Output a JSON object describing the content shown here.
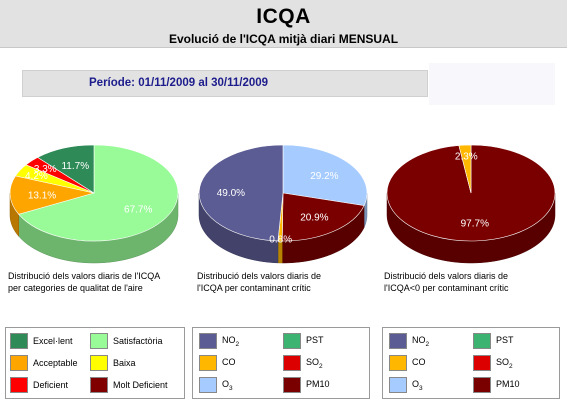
{
  "header": {
    "title": "ICQA",
    "subtitle": "Evolució de l'ICQA mitjà diari MENSUAL"
  },
  "period": {
    "label": "Període: 01/11/2009 al 30/11/2009"
  },
  "colors": {
    "excellent": "#2e8b57",
    "satisfactory": "#98fb98",
    "acceptable": "#ffa500",
    "low": "#ffff00",
    "deficient": "#ff0000",
    "very_deficient": "#800000",
    "no2": "#5c5c94",
    "pst": "#3cb371",
    "co": "#ffb700",
    "so2": "#dc0000",
    "o3": "#a6cbff",
    "pm10": "#7a0000"
  },
  "chart_data": [
    {
      "type": "pie",
      "title": "",
      "caption": [
        "Distribució dels valors diaris de l'ICQA",
        "per categories de qualitat de l'aire"
      ],
      "slices": [
        {
          "label": "Satisfactòria",
          "value": 67.7,
          "display": "67.7%",
          "color": "#98fb98"
        },
        {
          "label": "Acceptable",
          "value": 13.1,
          "display": "13.1%",
          "color": "#ffa500"
        },
        {
          "label": "Baixa",
          "value": 4.2,
          "display": "4.2%",
          "color": "#ffff00"
        },
        {
          "label": "Deficient",
          "value": 3.3,
          "display": "3.3%",
          "color": "#ff0000"
        },
        {
          "label": "Excel·lent",
          "value": 11.7,
          "display": "11.7%",
          "color": "#2e8b57"
        }
      ]
    },
    {
      "type": "pie",
      "title": "",
      "caption": [
        "Distribució dels valors diaris de",
        "l'ICQA per contaminant crític"
      ],
      "slices": [
        {
          "label": "O3",
          "value": 29.2,
          "display": "29.2%",
          "color": "#a6cbff"
        },
        {
          "label": "PM10",
          "value": 20.9,
          "display": "20.9%",
          "color": "#7a0000"
        },
        {
          "label": "CO",
          "value": 0.8,
          "display": "0.8%",
          "color": "#ffb700"
        },
        {
          "label": "NO2",
          "value": 49.0,
          "display": "49.0%",
          "color": "#5c5c94"
        }
      ]
    },
    {
      "type": "pie",
      "title": "",
      "caption": [
        "Distribució dels valors diaris de",
        "l'ICQA<0 per contaminant crític"
      ],
      "slices": [
        {
          "label": "PM10",
          "value": 97.7,
          "display": "97.7%",
          "color": "#7a0000"
        },
        {
          "label": "CO",
          "value": 2.3,
          "display": "2.3%",
          "color": "#ffb700"
        }
      ]
    }
  ],
  "legend1": [
    {
      "label": "Excel·lent",
      "color": "#2e8b57"
    },
    {
      "label": "Satisfactòria",
      "color": "#98fb98"
    },
    {
      "label": "Acceptable",
      "color": "#ffa500"
    },
    {
      "label": "Baixa",
      "color": "#ffff00"
    },
    {
      "label": "Deficient",
      "color": "#ff0000"
    },
    {
      "label": "Molt Deficient",
      "color": "#800000"
    }
  ],
  "legend2": [
    {
      "label": "NO",
      "sub": "2",
      "color": "#5c5c94"
    },
    {
      "label": "PST",
      "sub": "",
      "color": "#3cb371"
    },
    {
      "label": "CO",
      "sub": "",
      "color": "#ffb700"
    },
    {
      "label": "SO",
      "sub": "2",
      "color": "#dc0000"
    },
    {
      "label": "O",
      "sub": "3",
      "color": "#a6cbff"
    },
    {
      "label": "PM10",
      "sub": "",
      "color": "#7a0000"
    }
  ],
  "legend3": [
    {
      "label": "NO",
      "sub": "2",
      "color": "#5c5c94"
    },
    {
      "label": "PST",
      "sub": "",
      "color": "#3cb371"
    },
    {
      "label": "CO",
      "sub": "",
      "color": "#ffb700"
    },
    {
      "label": "SO",
      "sub": "2",
      "color": "#dc0000"
    },
    {
      "label": "O",
      "sub": "3",
      "color": "#a6cbff"
    },
    {
      "label": "PM10",
      "sub": "",
      "color": "#7a0000"
    }
  ]
}
